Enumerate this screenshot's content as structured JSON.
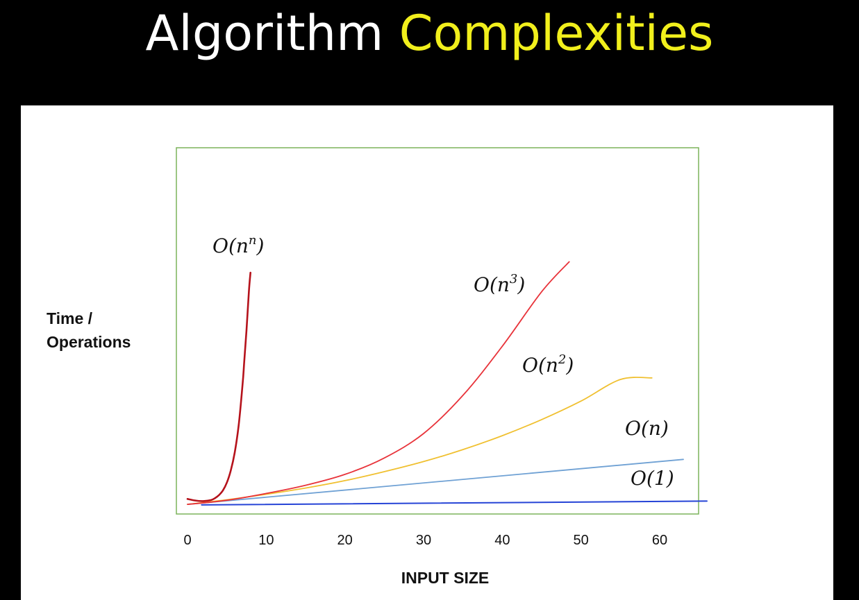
{
  "slide": {
    "title_main": "Algorithm",
    "title_accent": "Complexities",
    "accent_color": "#f1ef1c"
  },
  "chart_data": {
    "type": "line",
    "xlabel": "INPUT SIZE",
    "ylabel": "Time /\nOperations",
    "xlim": [
      0,
      66
    ],
    "x_ticks": [
      0,
      10,
      20,
      30,
      40,
      50,
      60
    ],
    "ylim": [
      0,
      100
    ],
    "grid": false,
    "frame_color": "#7cb35a",
    "series": [
      {
        "name": "O(n^n)",
        "label_base": "O(n",
        "label_sup": "n",
        "label_end": ")",
        "color": "#b5121b",
        "x": [
          0,
          1,
          2,
          3,
          3.5,
          4,
          4.5,
          5,
          5.5,
          6,
          6.5,
          7,
          7.2,
          7.5,
          7.8,
          8.0
        ],
        "y": [
          4,
          3.4,
          3.2,
          3.6,
          4.3,
          5.4,
          7.1,
          10,
          14.4,
          21,
          31,
          46,
          54,
          66,
          80,
          87
        ]
      },
      {
        "name": "O(n^3)",
        "label_base": "O(n",
        "label_sup": "3",
        "label_end": ")",
        "color": "#e8333a",
        "x": [
          0,
          5,
          10,
          15,
          20,
          25,
          30,
          35,
          40,
          45,
          48.5
        ],
        "y": [
          2,
          3.5,
          6,
          9,
          13,
          19,
          28,
          42,
          60,
          80,
          91
        ]
      },
      {
        "name": "O(n^2)",
        "label_base": "O(n",
        "label_sup": "2",
        "label_end": ")",
        "color": "#f0c030",
        "x": [
          0,
          5,
          10,
          15,
          20,
          25,
          30,
          35,
          40,
          45,
          50,
          55,
          59
        ],
        "y": [
          2,
          3.7,
          5.7,
          8,
          10.7,
          14,
          17.7,
          22.1,
          27.2,
          33.1,
          39.9,
          47.8,
          48.4
        ]
      },
      {
        "name": "O(n)",
        "label_base": "O(n)",
        "label_sup": "",
        "label_end": "",
        "color": "#6fa1d4",
        "x": [
          0,
          63
        ],
        "y": [
          2,
          18.5
        ]
      },
      {
        "name": "O(1)",
        "label_base": "O(1)",
        "label_sup": "",
        "label_end": "",
        "color": "#2543d6",
        "x": [
          1.8,
          66
        ],
        "y": [
          1.8,
          3.2
        ]
      }
    ]
  }
}
